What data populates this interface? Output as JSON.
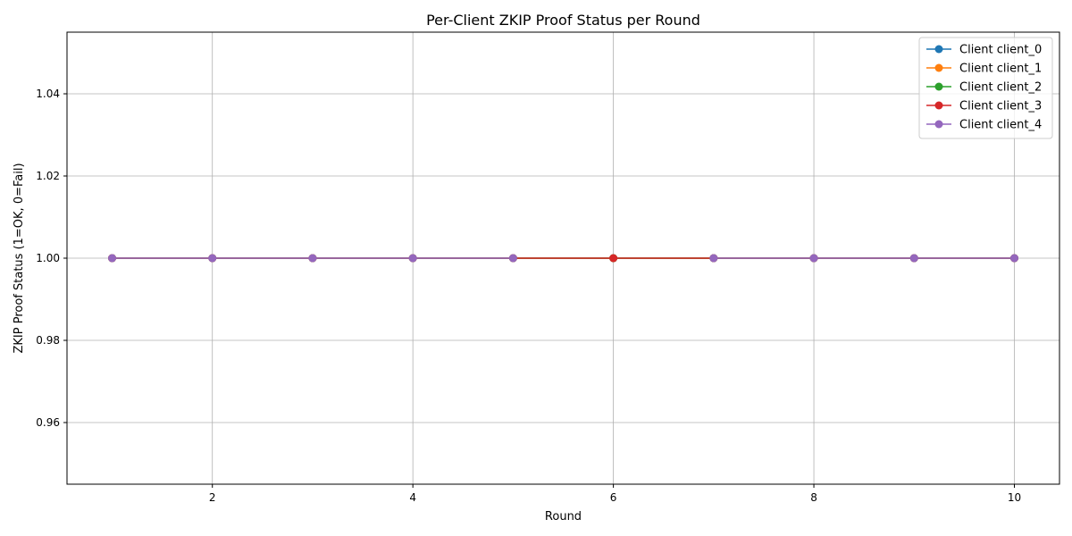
{
  "chart_data": {
    "type": "line",
    "title": "Per-Client ZKIP Proof Status per Round",
    "xlabel": "Round",
    "ylabel": "ZKIP Proof Status (1=OK, 0=Fail)",
    "x": [
      1,
      2,
      3,
      4,
      5,
      6,
      7,
      8,
      9,
      10
    ],
    "xlim": [
      0.55,
      10.45
    ],
    "ylim": [
      0.945,
      1.055
    ],
    "xticks": [
      2,
      4,
      6,
      8,
      10
    ],
    "yticks": [
      0.96,
      0.98,
      1.0,
      1.02,
      1.04
    ],
    "xtick_labels": [
      "2",
      "4",
      "6",
      "8",
      "10"
    ],
    "ytick_labels": [
      "0.96",
      "0.98",
      "1.00",
      "1.02",
      "1.04"
    ],
    "grid": true,
    "legend_position": "top-right",
    "series": [
      {
        "name": "Client client_0",
        "color": "#1f77b4",
        "values": [
          1,
          1,
          1,
          1,
          1,
          1,
          1,
          1,
          1,
          1
        ]
      },
      {
        "name": "Client client_1",
        "color": "#ff7f0e",
        "values": [
          1,
          1,
          1,
          1,
          1,
          1,
          1,
          1,
          1,
          1
        ]
      },
      {
        "name": "Client client_2",
        "color": "#2ca02c",
        "values": [
          1,
          1,
          1,
          1,
          1,
          1,
          1,
          1,
          1,
          1
        ]
      },
      {
        "name": "Client client_3",
        "color": "#d62728",
        "values": [
          1,
          1,
          1,
          1,
          1,
          1,
          1,
          1,
          1,
          1
        ]
      },
      {
        "name": "Client client_4",
        "color": "#9467bd",
        "values": [
          1,
          1,
          1,
          1,
          1,
          null,
          1,
          1,
          1,
          1
        ]
      }
    ]
  }
}
